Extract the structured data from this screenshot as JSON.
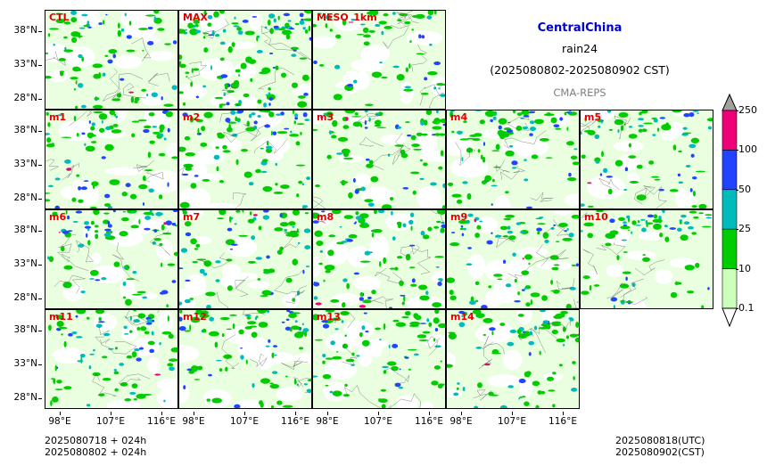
{
  "header": {
    "region": "CentralChina",
    "variable": "rain24",
    "period": "(2025080802-2025080902 CST)",
    "model": "CMA-REPS"
  },
  "panels": [
    {
      "label": "CTL",
      "intensity": 0.45
    },
    {
      "label": "MAX",
      "intensity": 0.95
    },
    {
      "label": "MESO_1km",
      "intensity": 0.25
    },
    {
      "label": "m1",
      "intensity": 0.5
    },
    {
      "label": "m2",
      "intensity": 0.55
    },
    {
      "label": "m3",
      "intensity": 0.5
    },
    {
      "label": "m4",
      "intensity": 0.55
    },
    {
      "label": "m5",
      "intensity": 0.45
    },
    {
      "label": "m6",
      "intensity": 0.5
    },
    {
      "label": "m7",
      "intensity": 0.45
    },
    {
      "label": "m8",
      "intensity": 0.6
    },
    {
      "label": "m9",
      "intensity": 0.5
    },
    {
      "label": "m10",
      "intensity": 0.4
    },
    {
      "label": "m11",
      "intensity": 0.5
    },
    {
      "label": "m12",
      "intensity": 0.55
    },
    {
      "label": "m13",
      "intensity": 0.45
    },
    {
      "label": "m14",
      "intensity": 0.5
    }
  ],
  "axes": {
    "lat_labels": [
      "38°N",
      "33°N",
      "28°N"
    ],
    "lon_labels": [
      "98°E",
      "107°E",
      "116°E"
    ]
  },
  "colorbar": {
    "levels": [
      "0.1",
      "10",
      "25",
      "50",
      "100",
      "250"
    ],
    "colors": [
      "#ccffbb",
      "#00cc00",
      "#00bbbb",
      "#2244ff",
      "#ee0077"
    ],
    "under_color": "#ffffff",
    "over_color": "#a0a0a0"
  },
  "footer": {
    "init_utc": "2025080718  +  024h",
    "init_cst": "2025080802  +  024h",
    "valid_utc": "2025080818(UTC)",
    "valid_cst": "2025080902(CST)"
  }
}
